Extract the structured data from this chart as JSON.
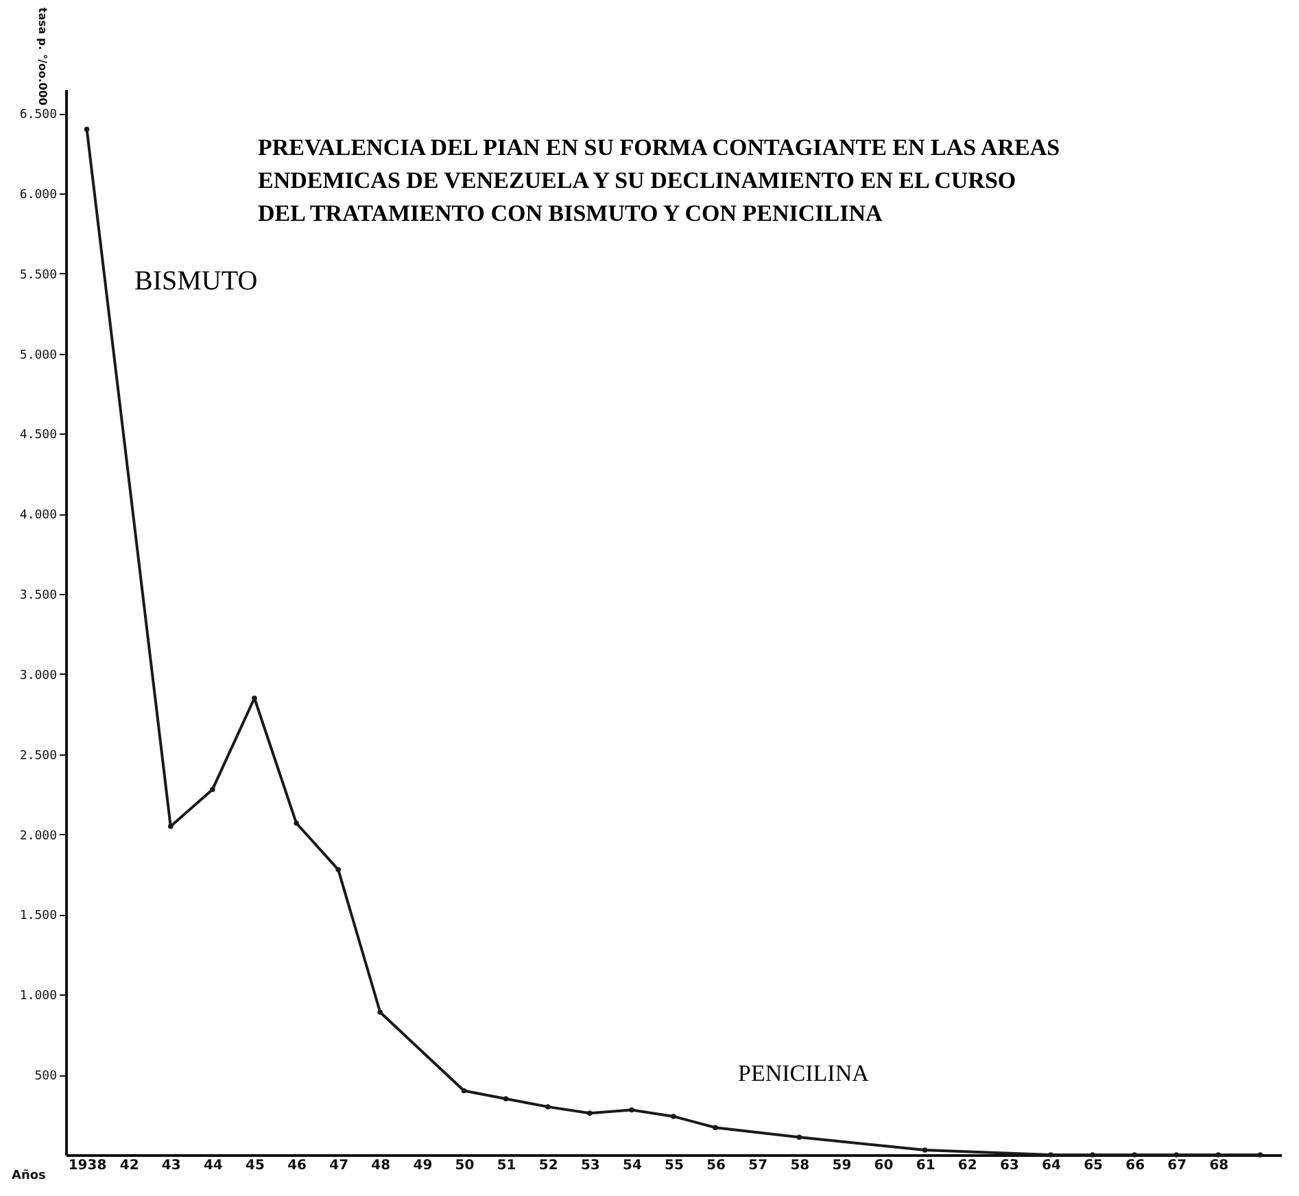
{
  "chart_data": {
    "type": "line",
    "title": "PREVALENCIA DEL PIAN EN SU FORMA CONTAGIANTE EN LAS AREAS\nENDEMICAS DE VENEZUELA Y SU DECLINAMIENTO EN EL CURSO\nDEL TRATAMIENTO CON BISMUTO Y CON PENICILINA",
    "xlabel": "Años",
    "ylabel": "tasa p. °/oo.000",
    "categories": [
      "1938",
      "42",
      "43",
      "44",
      "45",
      "46",
      "47",
      "48",
      "49",
      "50",
      "51",
      "52",
      "53",
      "54",
      "55",
      "56",
      "57",
      "58",
      "59",
      "60",
      "61",
      "62",
      "63",
      "64",
      "65",
      "66",
      "67",
      "68",
      null
    ],
    "series": [
      {
        "color": "#1a1a1a",
        "values": [
          6400,
          null,
          2050,
          2280,
          2850,
          2070,
          1780,
          890,
          null,
          400,
          350,
          300,
          260,
          280,
          240,
          170,
          null,
          110,
          null,
          null,
          30,
          null,
          null,
          0,
          0,
          0,
          0,
          0,
          0
        ]
      }
    ],
    "ylim": [
      0,
      6650
    ],
    "yticks": [
      500,
      {
        "value": 1000,
        "label": "1.000"
      },
      {
        "value": 1500,
        "label": "1.500"
      },
      {
        "value": 2000,
        "label": "2.000"
      },
      {
        "value": 2500,
        "label": "2.500"
      },
      {
        "value": 3000,
        "label": "3.000"
      },
      {
        "value": 3500,
        "label": "3.500"
      },
      {
        "value": 4000,
        "label": "4.000"
      },
      {
        "value": 4500,
        "label": "4.500"
      },
      {
        "value": 5000,
        "label": "5.000"
      },
      {
        "value": 5500,
        "label": "5.500"
      },
      {
        "value": 6000,
        "label": "6.000"
      },
      {
        "value": 6500,
        "label": "6.500"
      }
    ],
    "annotations": [
      "BISMUTO",
      "PENICILINA"
    ],
    "grid": false,
    "marker": "circle",
    "line_style": "solid"
  }
}
